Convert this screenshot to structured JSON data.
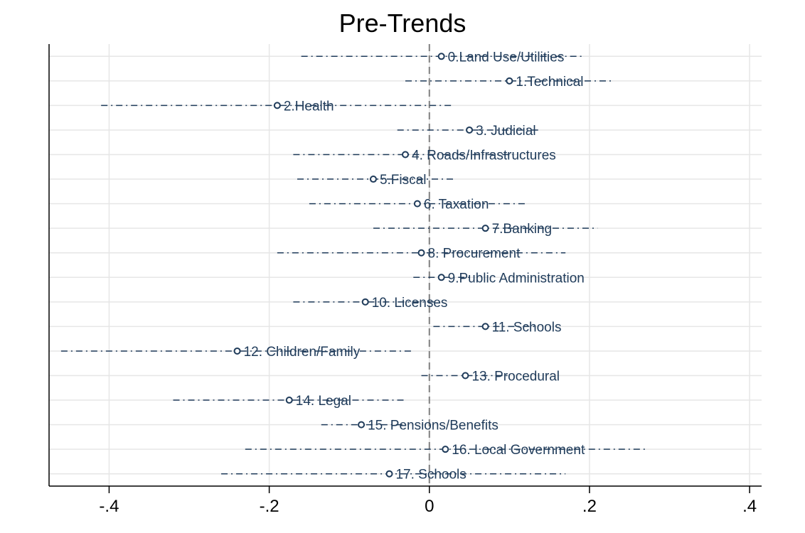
{
  "chart_data": {
    "type": "scatter",
    "title": "Pre-Trends",
    "xlabel": "",
    "ylabel": "",
    "xlim": [
      -0.475,
      0.415
    ],
    "xticks": [
      -0.4,
      -0.2,
      0,
      0.2,
      0.4
    ],
    "xtick_labels": [
      "-.4",
      "-.2",
      "0",
      ".2",
      ".4"
    ],
    "reference_line_x": 0,
    "grid": true,
    "marker": "hollow-circle",
    "ci_style": "dash-dot",
    "colors": {
      "series": "#1f3b5a",
      "grid": "#e6e6e6",
      "refline": "#808080",
      "axis": "#000000"
    },
    "points": [
      {
        "label": "0.Land Use/Utilities",
        "estimate": 0.015,
        "ci_low": -0.16,
        "ci_high": 0.19
      },
      {
        "label": "1.Technical",
        "estimate": 0.1,
        "ci_low": -0.03,
        "ci_high": 0.23
      },
      {
        "label": "2.Health",
        "estimate": -0.19,
        "ci_low": -0.41,
        "ci_high": 0.03
      },
      {
        "label": "3. Judicial",
        "estimate": 0.05,
        "ci_low": -0.04,
        "ci_high": 0.14
      },
      {
        "label": "4. Roads/Infrastructures",
        "estimate": -0.03,
        "ci_low": -0.17,
        "ci_high": 0.11
      },
      {
        "label": "5.Fiscal",
        "estimate": -0.07,
        "ci_low": -0.165,
        "ci_high": 0.03
      },
      {
        "label": "6. Taxation",
        "estimate": -0.015,
        "ci_low": -0.15,
        "ci_high": 0.12
      },
      {
        "label": "7.Banking",
        "estimate": 0.07,
        "ci_low": -0.07,
        "ci_high": 0.21
      },
      {
        "label": "8. Procurement",
        "estimate": -0.01,
        "ci_low": -0.19,
        "ci_high": 0.17
      },
      {
        "label": "9.Public Administration",
        "estimate": 0.015,
        "ci_low": -0.02,
        "ci_high": 0.05
      },
      {
        "label": "10. Licenses",
        "estimate": -0.08,
        "ci_low": -0.17,
        "ci_high": 0.01
      },
      {
        "label": "11. Schools",
        "estimate": 0.07,
        "ci_low": 0.005,
        "ci_high": 0.135
      },
      {
        "label": "12. Children/Family",
        "estimate": -0.24,
        "ci_low": -0.46,
        "ci_high": -0.02
      },
      {
        "label": "13. Procedural",
        "estimate": 0.045,
        "ci_low": -0.01,
        "ci_high": 0.1
      },
      {
        "label": "14. Legal",
        "estimate": -0.175,
        "ci_low": -0.32,
        "ci_high": -0.03
      },
      {
        "label": "15. Pensions/Benefits",
        "estimate": -0.085,
        "ci_low": -0.135,
        "ci_high": -0.03
      },
      {
        "label": "16. Local Government",
        "estimate": 0.02,
        "ci_low": -0.23,
        "ci_high": 0.27
      },
      {
        "label": "17. Schools",
        "estimate": -0.05,
        "ci_low": -0.26,
        "ci_high": 0.17
      }
    ]
  }
}
